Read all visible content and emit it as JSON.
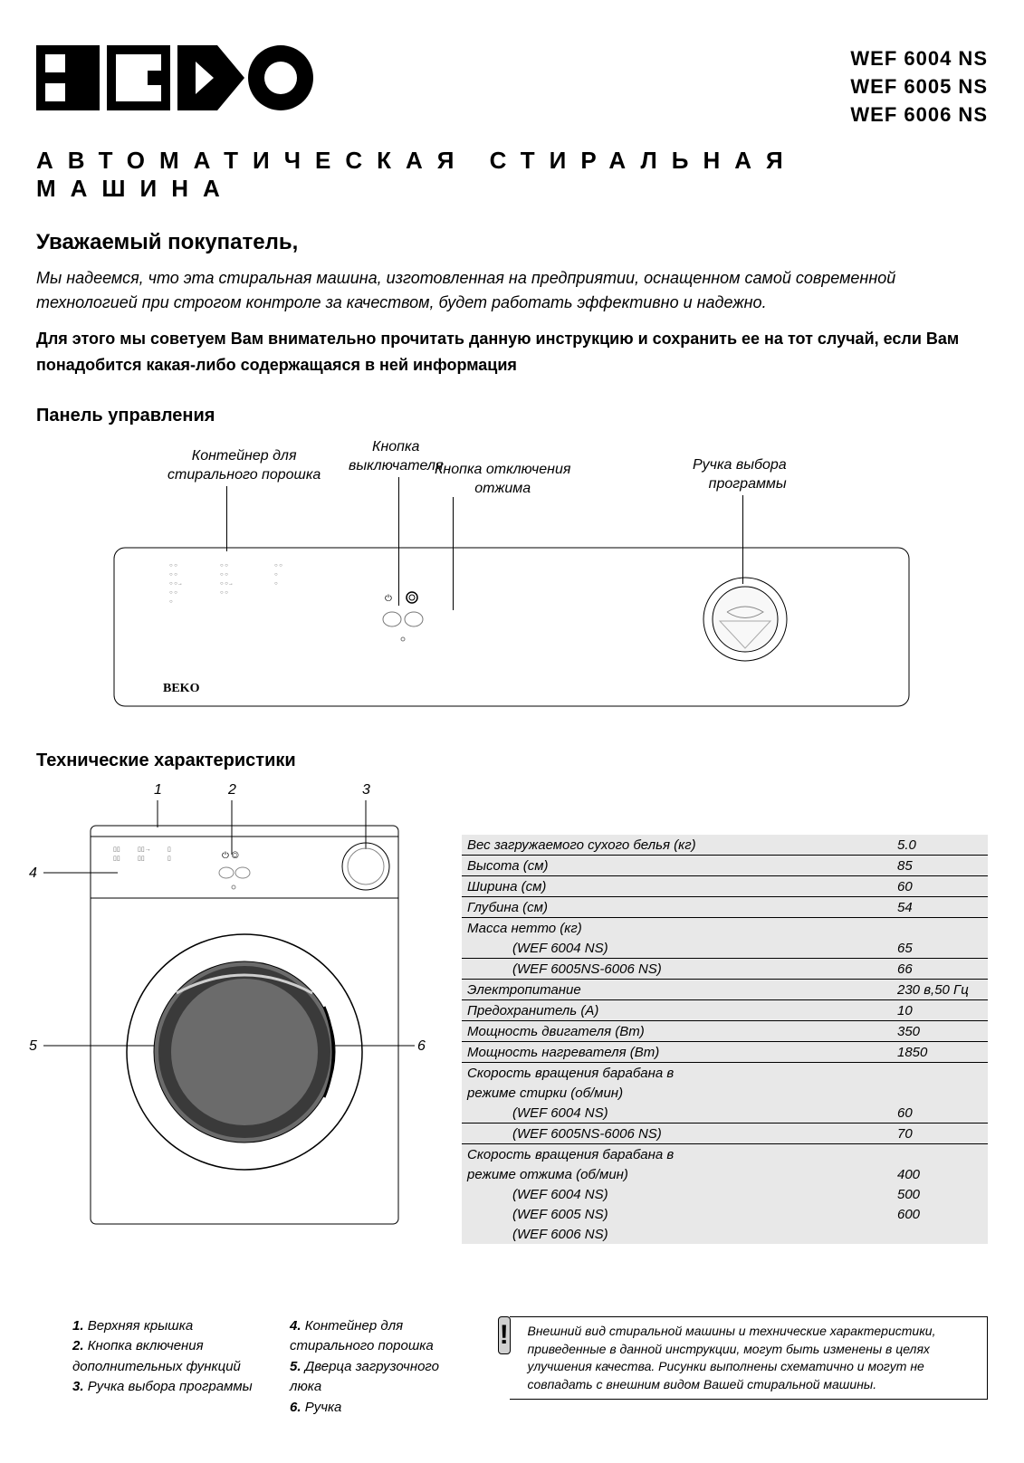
{
  "header": {
    "brand": "BEKO",
    "models": [
      "WEF 6004 NS",
      "WEF 6005 NS",
      "WEF 6006 NS"
    ],
    "title": "АВТОМАТИЧЕСКАЯ СТИРАЛЬНАЯ МАШИНА"
  },
  "intro": {
    "greeting": "Уважаемый покупатель,",
    "italic": "Мы надеемся, что эта стиральная машина, изготовленная на предприятии, оснащенном самой современной технологией при строгом контроле за качеством, будет работать эффективно и надежно.",
    "bold": "Для этого мы советуем Вам внимательно прочитать данную инструкцию и сохранить ее на тот случай, если Вам понадобится какая-либо содержащаяся в ней информация"
  },
  "panel": {
    "title": "Панель управления",
    "callouts": {
      "detergent": "Контейнер для\nстирального порошка",
      "power": "Кнопка\nвыключателя",
      "spin_off": "Кнопка отключения\nотжима",
      "program": "Ручка выбора\nпрограммы"
    },
    "logo_small": "BEKO",
    "colors": {
      "outline": "#000000",
      "fill": "#ffffff",
      "knob_fill": "#f4f4f4"
    }
  },
  "specs": {
    "title": "Технические характеристики",
    "callout_numbers": [
      "1",
      "2",
      "3",
      "4",
      "5",
      "6"
    ],
    "rows": [
      {
        "label": "Вес загружаемого сухого белья (кг)",
        "value": "5.0",
        "border": true
      },
      {
        "label": "Высота (см)",
        "value": "85",
        "border": true
      },
      {
        "label": "Ширина (см)",
        "value": "60",
        "border": true
      },
      {
        "label": "Глубина (см)",
        "value": "54",
        "border": true
      },
      {
        "label": "Масса нетто (кг)",
        "value": "",
        "border": false
      },
      {
        "label": "(WEF 6004 NS)",
        "value": "65",
        "border": true,
        "sub": true
      },
      {
        "label": "(WEF 6005NS-6006 NS)",
        "value": "66",
        "border": true,
        "sub": true
      },
      {
        "label": "Электропитание",
        "value": "230 в,50 Гц",
        "border": true
      },
      {
        "label": "Предохранитель (А)",
        "value": "10",
        "border": true
      },
      {
        "label": "Мощность двигателя (Вт)",
        "value": "350",
        "border": true
      },
      {
        "label": "Мощность нагревателя (Вт)",
        "value": "1850",
        "border": true
      },
      {
        "label": "Скорость вращения барабана в",
        "value": "",
        "border": false
      },
      {
        "label": "режиме стирки (об/мин)",
        "value": "",
        "border": false
      },
      {
        "label": "(WEF 6004 NS)",
        "value": "60",
        "border": true,
        "sub": true
      },
      {
        "label": "(WEF 6005NS-6006 NS)",
        "value": "70",
        "border": true,
        "sub": true
      },
      {
        "label": "Скорость вращения барабана в",
        "value": "",
        "border": false
      },
      {
        "label": "режиме отжима (об/мин)",
        "value": "400",
        "border": false
      },
      {
        "label": "(WEF 6004 NS)",
        "value": "500",
        "border": false,
        "sub": true
      },
      {
        "label": "(WEF 6005 NS)",
        "value": "600",
        "border": false,
        "sub": true
      },
      {
        "label": "(WEF 6006 NS)",
        "value": "",
        "border": false,
        "sub": true
      }
    ],
    "table_bg": "#e8e8e8"
  },
  "legend": {
    "col1": [
      {
        "n": "1.",
        "t": "Верхняя крышка"
      },
      {
        "n": "2.",
        "t": "Кнопка включения\nдополнительных функций"
      },
      {
        "n": "3.",
        "t": "Ручка выбора программы"
      }
    ],
    "col2": [
      {
        "n": "4.",
        "t": "Контейнер для\nстирального порошка"
      },
      {
        "n": "5.",
        "t": "Дверца загрузочного\nлюка"
      },
      {
        "n": "6.",
        "t": "Ручка"
      }
    ]
  },
  "notice": {
    "icon": "!",
    "text": "Внешний вид стиральной машины и технические характеристики, приведенные в данной инструкции, могут быть изменены в целях улучшения качества. Рисунки выполнены схематично и могут не совпадать с внешним видом Вашей стиральной машины."
  }
}
